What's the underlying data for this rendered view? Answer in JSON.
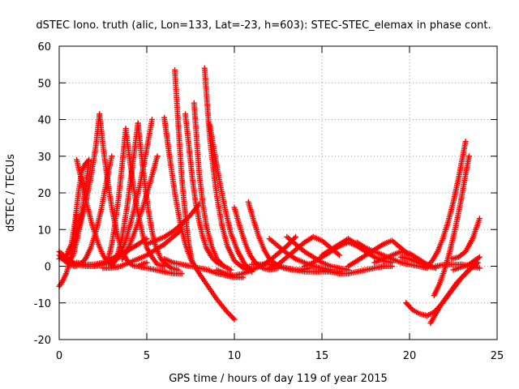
{
  "chart_data": {
    "type": "scatter",
    "title": "dSTEC Iono. truth (alic, Lon=133, Lat=-23, h=603): STEC-STEC_elemax in phase cont.",
    "xlabel": "GPS time / hours of day 119 of year 2015",
    "ylabel": "dSTEC  / TECUs",
    "xlim": [
      0,
      25
    ],
    "ylim": [
      -20,
      60
    ],
    "xticks": [
      0,
      5,
      10,
      15,
      20,
      25
    ],
    "yticks": [
      -20,
      -10,
      0,
      10,
      20,
      30,
      40,
      50,
      60
    ],
    "grid": true,
    "marker": "plus",
    "color": "#ff0000",
    "series": [
      {
        "x": [
          0.0,
          0.2,
          0.4,
          0.6,
          0.8,
          1.0
        ],
        "y": [
          -5.5,
          -4.0,
          -2.0,
          1.0,
          6.0,
          14.0
        ]
      },
      {
        "x": [
          0.0,
          0.3,
          0.6,
          0.9,
          1.2,
          1.5,
          1.8,
          2.1,
          2.4,
          2.7,
          3.0
        ],
        "y": [
          3.0,
          1.5,
          0.5,
          0.0,
          0.5,
          2.0,
          5.0,
          9.5,
          15.5,
          23.0,
          30.0
        ]
      },
      {
        "x": [
          0.0,
          0.5,
          1.0,
          1.5,
          2.0,
          2.5,
          3.0,
          3.5,
          4.0,
          4.5,
          5.0
        ],
        "y": [
          4.0,
          2.0,
          0.5,
          0.0,
          0.0,
          0.5,
          1.5,
          3.0,
          4.5,
          6.0,
          7.5
        ]
      },
      {
        "x": [
          0.2,
          0.5,
          0.8,
          1.1,
          1.4,
          1.7
        ],
        "y": [
          2.0,
          1.0,
          3.0,
          9.0,
          18.0,
          28.5
        ]
      },
      {
        "x": [
          0.5,
          0.7,
          0.9,
          1.1,
          1.3,
          1.5,
          1.7
        ],
        "y": [
          4.0,
          6.0,
          12.0,
          20.0,
          26.0,
          28.0,
          29.0
        ]
      },
      {
        "x": [
          1.0,
          1.3,
          1.6,
          1.9,
          2.2,
          2.5,
          2.8,
          3.1
        ],
        "y": [
          29.0,
          23.0,
          16.5,
          11.0,
          6.5,
          3.0,
          1.0,
          0.0
        ]
      },
      {
        "x": [
          0.0,
          0.3,
          0.6,
          0.9,
          1.2,
          1.5,
          1.8,
          2.1,
          2.3
        ],
        "y": [
          2.0,
          2.5,
          4.0,
          7.0,
          11.5,
          17.0,
          24.0,
          33.0,
          41.5
        ]
      },
      {
        "x": [
          2.3,
          2.5,
          2.7,
          2.9,
          3.1,
          3.3,
          3.5,
          3.7,
          3.9,
          4.1,
          4.3,
          4.5,
          4.7,
          5.0
        ],
        "y": [
          41.5,
          33.0,
          25.5,
          19.0,
          13.5,
          9.0,
          5.5,
          3.0,
          1.5,
          0.5,
          0.0,
          0.0,
          0.5,
          1.0
        ]
      },
      {
        "x": [
          1.0,
          1.5,
          2.0,
          2.5,
          3.0,
          3.5
        ],
        "y": [
          1.0,
          0.5,
          0.5,
          1.0,
          2.0,
          3.5
        ]
      },
      {
        "x": [
          2.8,
          3.0,
          3.2,
          3.4,
          3.6,
          3.8
        ],
        "y": [
          2.0,
          6.0,
          12.0,
          19.0,
          28.0,
          37.5
        ]
      },
      {
        "x": [
          3.8,
          4.0,
          4.2,
          4.4,
          4.6,
          4.8,
          5.0,
          5.3,
          5.6,
          6.0
        ],
        "y": [
          37.5,
          30.0,
          23.0,
          17.0,
          12.0,
          8.0,
          5.0,
          2.5,
          0.5,
          0.0
        ]
      },
      {
        "x": [
          3.0,
          3.3,
          3.6,
          3.9,
          4.2,
          4.5
        ],
        "y": [
          0.0,
          2.5,
          8.0,
          17.0,
          28.0,
          39.0
        ]
      },
      {
        "x": [
          4.5,
          4.7,
          4.9,
          5.1,
          5.3,
          5.5,
          5.8,
          6.1,
          6.4,
          6.8
        ],
        "y": [
          39.0,
          30.0,
          22.0,
          15.0,
          9.5,
          5.5,
          2.0,
          0.5,
          -0.5,
          -1.0
        ]
      },
      {
        "x": [
          3.0,
          3.4,
          3.8,
          4.2,
          4.6,
          5.0,
          5.3
        ],
        "y": [
          0.5,
          2.5,
          7.0,
          14.0,
          22.0,
          32.0,
          40.0
        ]
      },
      {
        "x": [
          3.6,
          4.0,
          4.4,
          4.8,
          5.2,
          5.6
        ],
        "y": [
          2.0,
          5.5,
          10.5,
          16.5,
          23.0,
          30.0
        ]
      },
      {
        "x": [
          2.5,
          3.0,
          3.5,
          4.0,
          4.5,
          5.0,
          5.5,
          6.0,
          6.5,
          7.0
        ],
        "y": [
          -0.5,
          -0.5,
          0.0,
          1.0,
          2.0,
          3.0,
          4.5,
          6.0,
          8.0,
          10.0
        ]
      },
      {
        "x": [
          5.0,
          5.5,
          6.0,
          6.5,
          7.0,
          7.5,
          8.0
        ],
        "y": [
          6.0,
          7.0,
          8.0,
          9.5,
          11.5,
          14.0,
          17.0
        ]
      },
      {
        "x": [
          4.5,
          5.0,
          5.5,
          6.0,
          6.5,
          7.0
        ],
        "y": [
          0.0,
          -0.5,
          -1.0,
          -1.5,
          -2.0,
          -2.0
        ]
      },
      {
        "x": [
          6.0,
          6.3,
          6.6,
          6.9,
          7.2,
          7.5
        ],
        "y": [
          40.5,
          30.0,
          20.0,
          12.0,
          6.0,
          2.0
        ]
      },
      {
        "x": [
          6.6,
          6.7,
          6.8,
          6.9,
          7.0,
          7.2,
          7.4,
          7.6
        ],
        "y": [
          53.5,
          46.0,
          38.5,
          31.0,
          24.0,
          14.0,
          6.0,
          1.0
        ]
      },
      {
        "x": [
          6.0,
          6.5,
          7.0,
          7.5,
          8.0,
          8.5,
          9.0,
          9.5,
          10.0,
          10.5
        ],
        "y": [
          2.0,
          1.0,
          0.5,
          0.0,
          -0.5,
          -1.0,
          -2.0,
          -2.5,
          -3.0,
          -3.0
        ]
      },
      {
        "x": [
          7.2,
          7.4,
          7.6,
          7.8,
          8.0,
          8.2,
          8.4,
          8.7,
          9.0,
          9.4
        ],
        "y": [
          41.5,
          33.0,
          24.0,
          17.0,
          12.0,
          8.0,
          5.0,
          2.5,
          1.0,
          0.0
        ]
      },
      {
        "x": [
          7.7,
          7.8,
          7.9,
          8.0,
          8.2,
          8.4,
          8.7,
          9.0,
          9.4,
          9.8
        ],
        "y": [
          44.5,
          38.0,
          31.0,
          25.0,
          17.0,
          11.0,
          5.5,
          2.0,
          0.0,
          -1.0
        ]
      },
      {
        "x": [
          8.3,
          8.4,
          8.5,
          8.6,
          8.8,
          9.0,
          9.3,
          9.6,
          10.0,
          10.5,
          11.0
        ],
        "y": [
          54.0,
          47.5,
          41.0,
          35.0,
          26.5,
          19.0,
          11.0,
          5.5,
          1.5,
          -0.5,
          -1.5
        ]
      },
      {
        "x": [
          8.6,
          8.9,
          9.2,
          9.5,
          9.8,
          10.2,
          10.6,
          11.0
        ],
        "y": [
          38.5,
          30.0,
          22.0,
          15.0,
          9.0,
          4.0,
          0.5,
          -1.0
        ]
      },
      {
        "x": [
          7.5,
          8.0,
          8.5,
          9.0,
          9.5,
          10.0
        ],
        "y": [
          2.0,
          -2.0,
          -5.5,
          -9.0,
          -12.0,
          -14.5
        ]
      },
      {
        "x": [
          9.0,
          9.5,
          10.0,
          10.5,
          11.0,
          11.5,
          12.0,
          12.5,
          13.0,
          13.5
        ],
        "y": [
          -1.0,
          -2.0,
          -2.5,
          -2.0,
          -1.0,
          0.0,
          1.5,
          3.5,
          5.5,
          8.0
        ]
      },
      {
        "x": [
          10.0,
          10.3,
          10.6,
          10.9,
          11.2,
          11.6,
          12.0,
          12.5
        ],
        "y": [
          16.0,
          11.0,
          6.5,
          3.0,
          1.0,
          -0.5,
          -1.0,
          -0.5
        ]
      },
      {
        "x": [
          10.8,
          11.1,
          11.4,
          11.7,
          12.0,
          12.4,
          12.8,
          13.3,
          13.8,
          14.3
        ],
        "y": [
          17.5,
          12.5,
          8.0,
          4.5,
          2.0,
          0.5,
          -0.5,
          -1.0,
          -1.0,
          -0.5
        ]
      },
      {
        "x": [
          11.0,
          11.5,
          12.0,
          12.5,
          13.0,
          13.5,
          14.0,
          14.5,
          15.0,
          15.5,
          16.0
        ],
        "y": [
          0.5,
          0.5,
          0.5,
          0.0,
          -0.5,
          -1.0,
          -1.5,
          -1.5,
          -1.5,
          -1.5,
          -1.5
        ]
      },
      {
        "x": [
          12.0,
          12.5,
          13.0,
          13.5,
          14.0,
          14.5,
          15.0,
          15.5
        ],
        "y": [
          7.5,
          5.5,
          3.5,
          2.0,
          1.0,
          0.0,
          -0.5,
          -1.0
        ]
      },
      {
        "x": [
          12.0,
          12.5,
          13.0,
          13.5,
          14.0,
          14.5,
          15.0,
          15.5,
          16.0
        ],
        "y": [
          -0.5,
          0.5,
          2.5,
          4.5,
          6.5,
          8.0,
          7.0,
          5.0,
          3.0
        ]
      },
      {
        "x": [
          13.0,
          13.5,
          14.0,
          14.5,
          15.0,
          15.5,
          16.0,
          16.5
        ],
        "y": [
          8.0,
          6.0,
          4.0,
          2.5,
          1.0,
          0.0,
          -0.5,
          -1.0
        ]
      },
      {
        "x": [
          14.0,
          14.5,
          15.0,
          15.5,
          16.0,
          16.5,
          17.0,
          17.5,
          18.0
        ],
        "y": [
          0.0,
          1.0,
          2.5,
          4.0,
          5.5,
          6.5,
          5.5,
          4.0,
          2.5
        ]
      },
      {
        "x": [
          15.0,
          15.5,
          16.0,
          16.5,
          17.0,
          17.5,
          18.0,
          18.5,
          19.0
        ],
        "y": [
          3.0,
          4.5,
          6.0,
          7.5,
          6.0,
          4.0,
          2.5,
          1.5,
          1.0
        ]
      },
      {
        "x": [
          15.0,
          15.5,
          16.0,
          16.5,
          17.0,
          17.5,
          18.0,
          18.5,
          19.0
        ],
        "y": [
          -1.0,
          -1.5,
          -2.0,
          -2.0,
          -1.5,
          -1.0,
          -0.5,
          0.0,
          0.0
        ]
      },
      {
        "x": [
          17.0,
          17.5,
          18.0,
          18.5,
          19.0,
          19.5,
          20.0,
          20.5,
          21.0
        ],
        "y": [
          6.5,
          5.0,
          4.0,
          3.0,
          2.0,
          1.0,
          0.5,
          0.0,
          -0.5
        ]
      },
      {
        "x": [
          16.5,
          17.0,
          17.5,
          18.0,
          18.5,
          19.0,
          19.5,
          20.0
        ],
        "y": [
          0.0,
          1.5,
          3.0,
          4.5,
          6.0,
          7.0,
          5.0,
          3.0
        ]
      },
      {
        "x": [
          18.0,
          18.5,
          19.0,
          19.5,
          20.0,
          20.5,
          21.0,
          21.5
        ],
        "y": [
          1.0,
          2.0,
          3.0,
          4.0,
          3.5,
          2.0,
          0.5,
          -0.5
        ]
      },
      {
        "x": [
          19.5,
          20.0,
          20.5,
          21.0,
          21.5
        ],
        "y": [
          2.5,
          2.0,
          1.0,
          0.0,
          -0.5
        ]
      },
      {
        "x": [
          19.8,
          20.2,
          20.6,
          21.0,
          21.4,
          21.8,
          22.2,
          22.6,
          23.0,
          23.4,
          23.8
        ],
        "y": [
          -10.0,
          -12.0,
          -13.0,
          -13.5,
          -12.5,
          -10.5,
          -8.0,
          -5.5,
          -3.0,
          -1.0,
          0.5
        ]
      },
      {
        "x": [
          21.2,
          21.5,
          21.8,
          22.1,
          22.4,
          22.7,
          23.0,
          23.3,
          23.6,
          23.9
        ],
        "y": [
          -15.5,
          -13.0,
          -10.5,
          -8.5,
          -6.5,
          -4.5,
          -3.0,
          -1.5,
          0.0,
          1.0
        ]
      },
      {
        "x": [
          21.4,
          21.7,
          22.0,
          22.3,
          22.6,
          22.9,
          23.2,
          23.4
        ],
        "y": [
          -8.0,
          -5.0,
          -1.0,
          4.0,
          10.0,
          17.0,
          25.0,
          30.0
        ]
      },
      {
        "x": [
          21.0,
          21.3,
          21.6,
          21.9,
          22.2,
          22.5,
          22.8,
          23.0,
          23.2
        ],
        "y": [
          0.0,
          1.5,
          4.0,
          7.5,
          12.0,
          17.5,
          24.0,
          29.0,
          34.0
        ]
      },
      {
        "x": [
          21.5,
          22.0,
          22.5,
          23.0,
          23.5,
          24.0
        ],
        "y": [
          0.0,
          0.5,
          0.5,
          0.5,
          0.0,
          -0.5
        ]
      },
      {
        "x": [
          22.5,
          22.8,
          23.1,
          23.4,
          23.7,
          24.0
        ],
        "y": [
          -1.0,
          -0.5,
          0.0,
          0.5,
          1.5,
          2.5
        ]
      },
      {
        "x": [
          22.4,
          22.8,
          23.2,
          23.6,
          24.0
        ],
        "y": [
          2.0,
          2.5,
          4.0,
          7.5,
          13.0
        ]
      }
    ]
  }
}
